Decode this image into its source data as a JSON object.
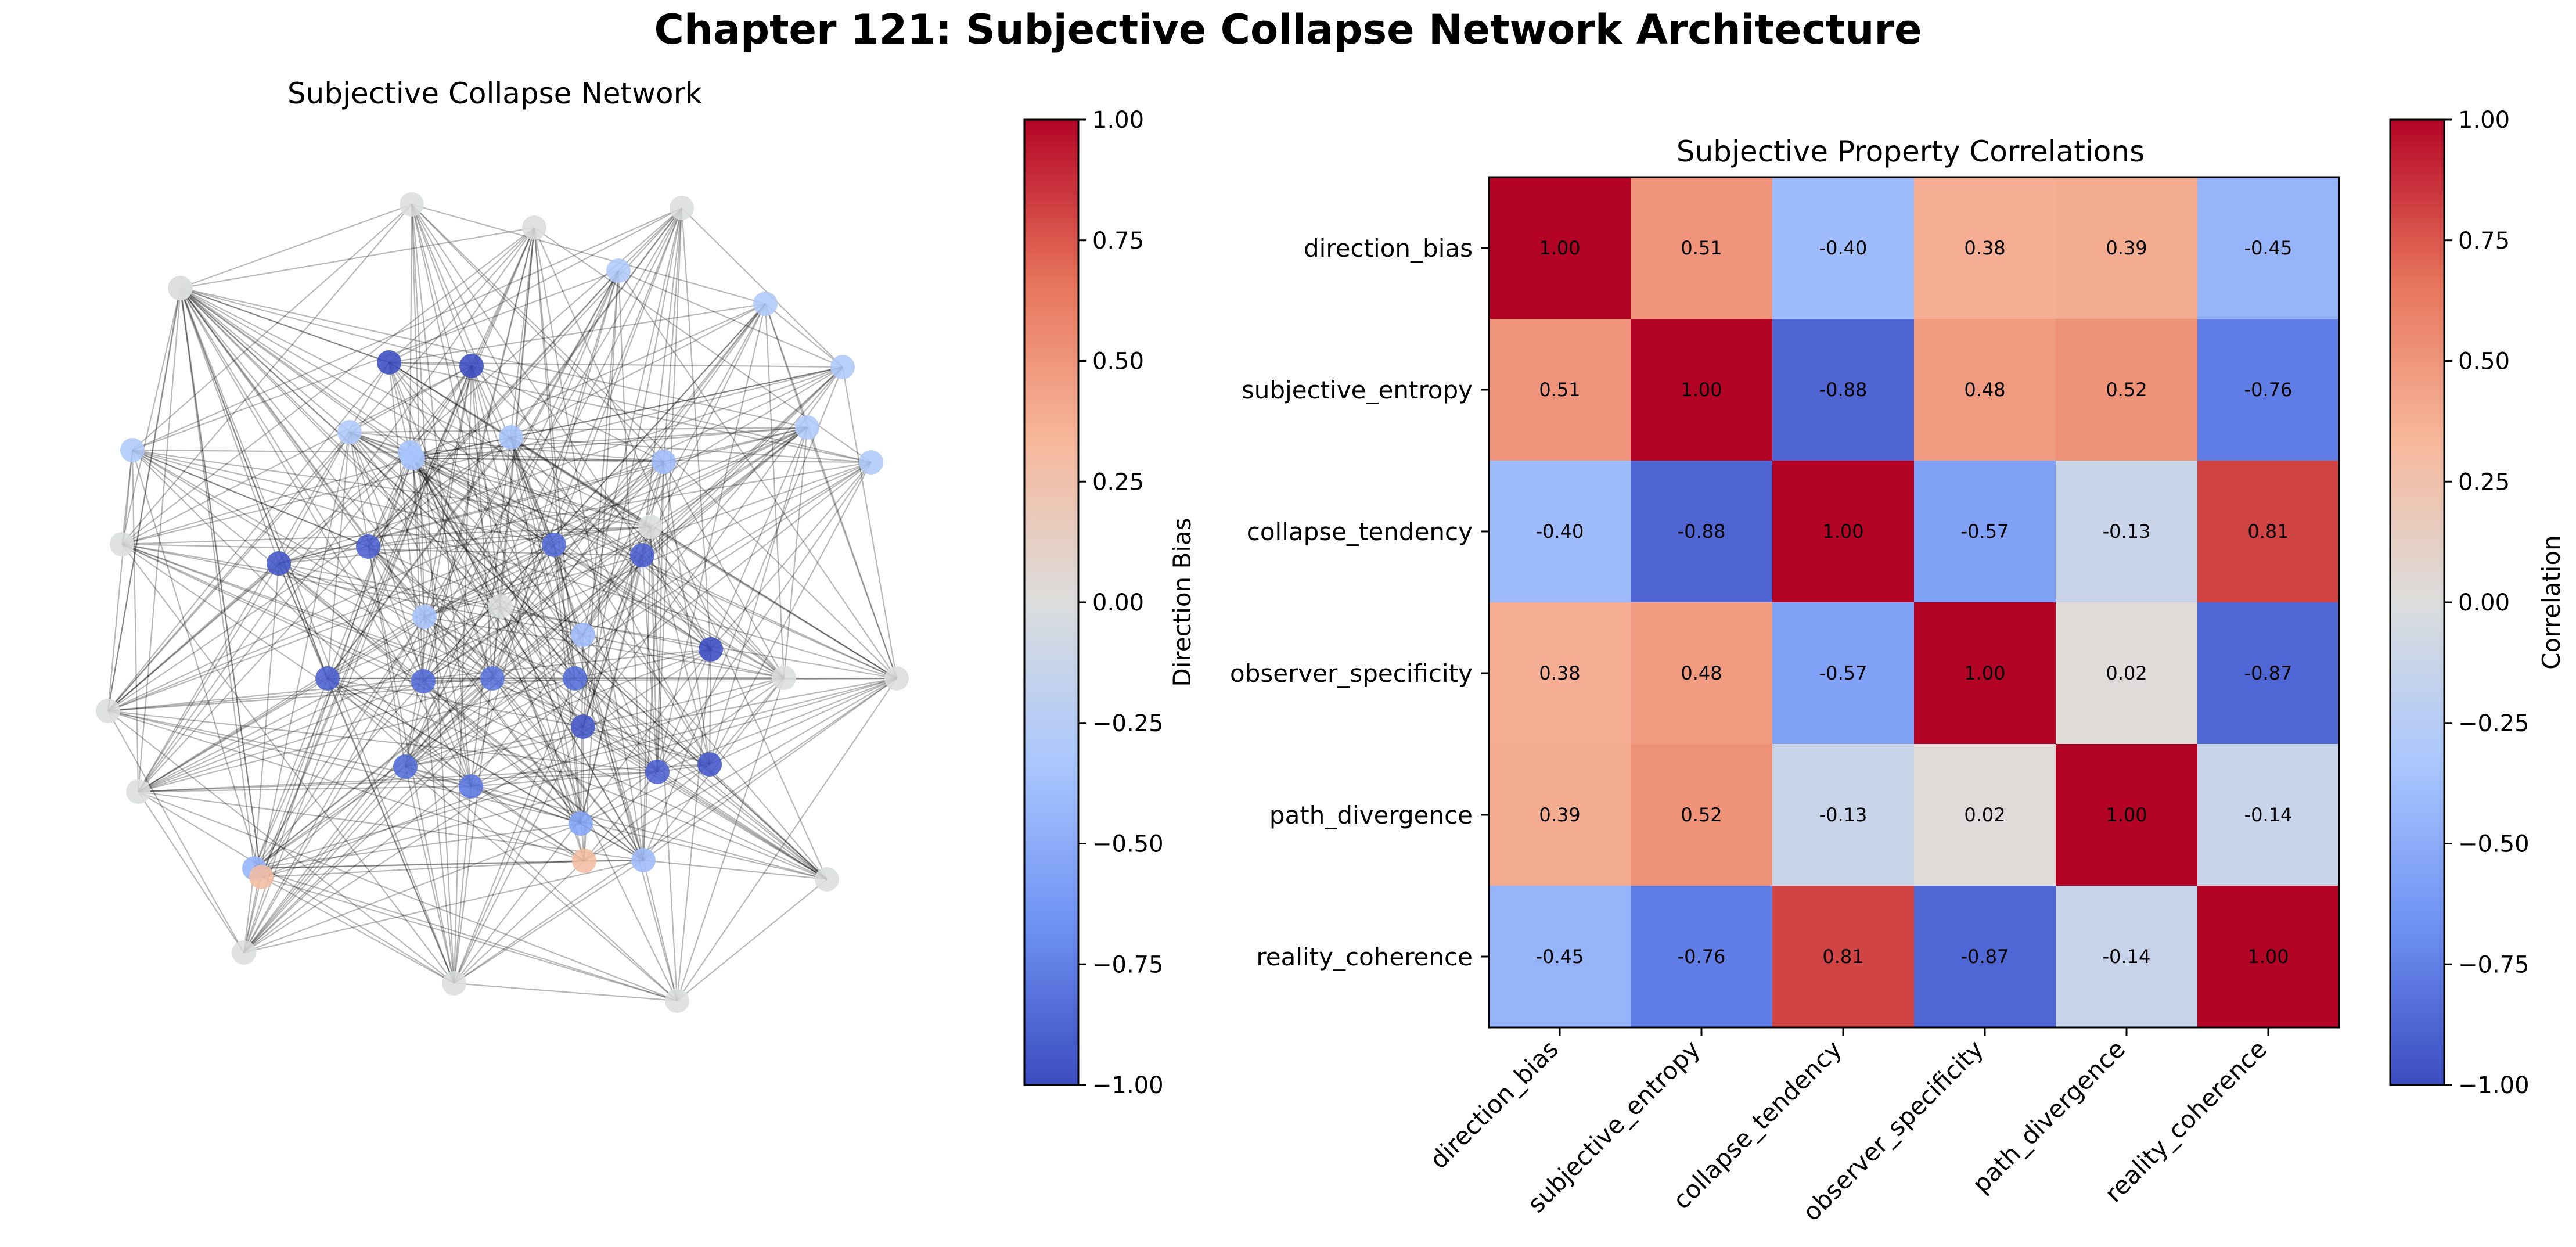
{
  "title": "Chapter 121: Subjective Collapse Network Architecture",
  "colorscale": {
    "name": "coolwarm",
    "stops": [
      "#3b4cc0",
      "#6f92f3",
      "#aac7fd",
      "#dcdddd",
      "#f7b89c",
      "#e7745b",
      "#b40426"
    ]
  },
  "network": {
    "title": "Subjective Collapse Network",
    "colorbar": {
      "label": "Direction Bias",
      "range": [
        -1.0,
        1.0
      ],
      "ticks": [
        "1.00",
        "0.75",
        "0.50",
        "0.25",
        "0.00",
        "−0.25",
        "−0.50",
        "−0.75",
        "−1.00"
      ]
    }
  },
  "heatmap": {
    "title": "Subjective Property Correlations",
    "colorbar": {
      "label": "Correlation",
      "range": [
        -1.0,
        1.0
      ],
      "ticks": [
        "1.00",
        "0.75",
        "0.50",
        "0.25",
        "0.00",
        "−0.25",
        "−0.50",
        "−0.75",
        "−1.00"
      ]
    }
  },
  "chart_data": [
    {
      "type": "network",
      "title": "Subjective Collapse Network",
      "node_color_label": "Direction Bias",
      "node_color_range": [
        -1,
        1
      ],
      "node_direction_bias": [
        -1,
        -1,
        -1,
        -0.95,
        -0.95,
        -0.95,
        -0.9,
        -0.9,
        -0.9,
        -0.9,
        -0.85,
        -0.85,
        -0.85,
        -0.85,
        -0.8,
        -0.8,
        -0.55,
        -0.45,
        -0.4,
        -0.4,
        -0.4,
        -0.35,
        -0.35,
        -0.35,
        -0.35,
        -0.3,
        -0.3,
        -0.3,
        -0.3,
        -0.3,
        -0.3,
        -0.3,
        0,
        0,
        0,
        0,
        0,
        0,
        0,
        0,
        0,
        0,
        0,
        0,
        0,
        0,
        0,
        0,
        0.3,
        0.3
      ]
    },
    {
      "type": "heatmap",
      "title": "Subjective Property Correlations",
      "variables": [
        "direction_bias",
        "subjective_entropy",
        "collapse_tendency",
        "observer_specificity",
        "path_divergence",
        "reality_coherence"
      ],
      "matrix": [
        [
          "1.00",
          "0.51",
          "-0.40",
          "0.38",
          "0.39",
          "-0.45"
        ],
        [
          "0.51",
          "1.00",
          "-0.88",
          "0.48",
          "0.52",
          "-0.76"
        ],
        [
          "-0.40",
          "-0.88",
          "1.00",
          "-0.57",
          "-0.13",
          "0.81"
        ],
        [
          "0.38",
          "0.48",
          "-0.57",
          "1.00",
          "0.02",
          "-0.87"
        ],
        [
          "0.39",
          "0.52",
          "-0.13",
          "0.02",
          "1.00",
          "-0.14"
        ],
        [
          "-0.45",
          "-0.76",
          "0.81",
          "-0.87",
          "-0.14",
          "1.00"
        ]
      ],
      "colorbar_label": "Correlation",
      "range": [
        -1,
        1
      ]
    }
  ]
}
